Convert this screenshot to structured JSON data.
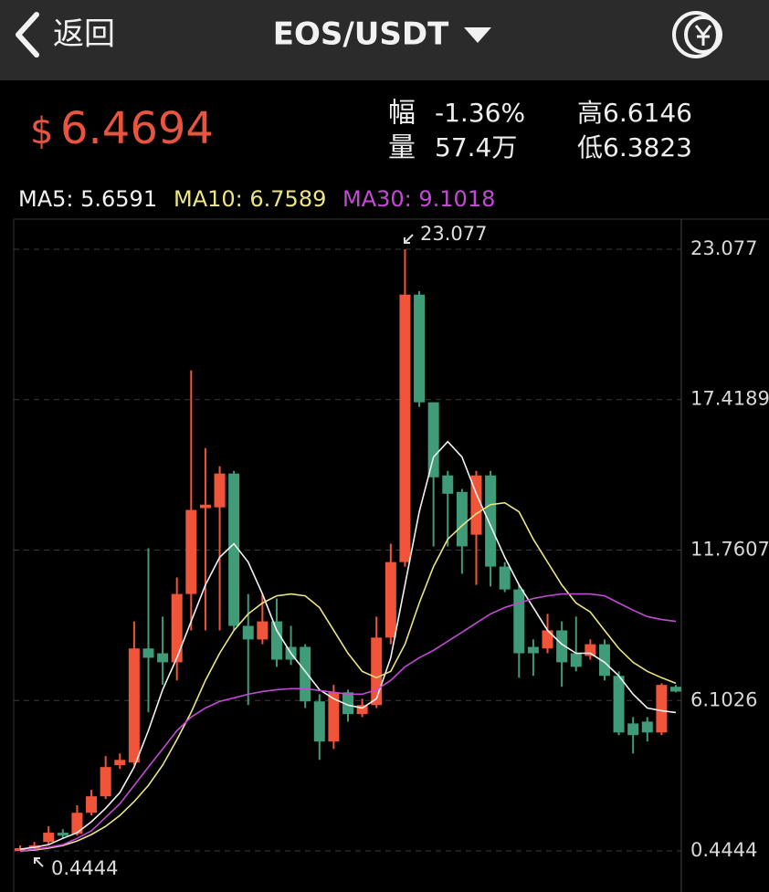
{
  "header": {
    "back": "返回",
    "pair": "EOS/USDT"
  },
  "ticker": {
    "currency": "$",
    "price": "6.4694",
    "change_label": "幅",
    "change": "-1.36%",
    "volume_label": "量",
    "volume": "57.4万",
    "high": "高6.6146",
    "low": "低6.3823"
  },
  "chart_data": {
    "type": "candlestick",
    "ylim": [
      -1.1,
      24.21
    ],
    "yticks": [
      0.4444,
      6.1026,
      11.7607,
      17.4189,
      23.077
    ],
    "grid": true,
    "up_color": "#f0553a",
    "down_color": "#3f9b78",
    "max_marker": 23.077,
    "min_marker": 0.4444,
    "open": [
      0.44,
      0.55,
      0.78,
      1.13,
      1.09,
      1.88,
      2.5,
      3.67,
      3.77,
      8.06,
      7.88,
      7.54,
      10.11,
      13.34,
      13.37,
      14.64,
      8.91,
      8.4,
      9.08,
      8.12,
      8.12,
      6.07,
      4.56,
      6.41,
      5.59,
      5.93,
      8.47,
      11.31,
      21.37,
      17.32,
      14.57,
      13.95,
      12.34,
      14.57,
      11.14,
      10.28,
      8.12,
      8.06,
      8.74,
      7.88,
      7.78,
      8.22,
      7.03,
      5.24,
      5.31,
      4.9,
      6.62
    ],
    "high": [
      0.65,
      0.78,
      1.37,
      1.26,
      2.16,
      2.74,
      4.01,
      4.11,
      9.08,
      11.83,
      9.26,
      10.73,
      18.52,
      15.6,
      14.91,
      14.74,
      10.11,
      10.11,
      9.94,
      8.91,
      8.22,
      6.34,
      6.69,
      6.51,
      6.17,
      9.26,
      12.0,
      23.077,
      21.5,
      17.32,
      14.74,
      14.06,
      14.74,
      14.74,
      11.31,
      10.45,
      8.4,
      9.36,
      9.08,
      9.26,
      8.4,
      8.4,
      7.2,
      5.48,
      5.48,
      6.75,
      6.69
    ],
    "low": [
      0.4444,
      0.51,
      0.71,
      0.92,
      1.02,
      1.78,
      2.4,
      3.53,
      3.67,
      5.66,
      6.69,
      6.86,
      8.74,
      8.74,
      8.74,
      8.74,
      5.93,
      8.22,
      7.37,
      7.44,
      5.82,
      3.87,
      4.28,
      5.31,
      5.48,
      5.82,
      8.22,
      11.14,
      17.15,
      11.9,
      11.9,
      10.87,
      10.45,
      10.39,
      10.18,
      6.96,
      7.03,
      7.88,
      6.62,
      7.2,
      7.64,
      6.86,
      4.8,
      4.11,
      4.56,
      4.8,
      6.41
    ],
    "close": [
      0.55,
      0.65,
      1.13,
      1.02,
      1.88,
      2.5,
      3.6,
      3.87,
      8.06,
      7.71,
      7.54,
      10.11,
      13.27,
      13.47,
      14.64,
      8.91,
      8.4,
      9.08,
      7.64,
      7.64,
      6.07,
      4.56,
      6.41,
      5.59,
      5.93,
      8.47,
      11.31,
      21.37,
      17.32,
      14.5,
      13.88,
      11.9,
      14.57,
      11.14,
      10.28,
      7.88,
      7.88,
      8.74,
      7.54,
      7.37,
      8.22,
      7.03,
      4.9,
      4.8,
      4.9,
      6.69,
      6.44
    ],
    "series": [
      {
        "name": "MA5: 5.6591",
        "color": "#f2f2f2",
        "values": [
          0.51,
          0.58,
          0.68,
          0.92,
          1.13,
          1.54,
          2.05,
          2.64,
          3.6,
          4.97,
          6.51,
          7.71,
          9.08,
          10.45,
          11.49,
          12.0,
          11.31,
          10.11,
          8.74,
          7.88,
          7.2,
          6.51,
          6.17,
          5.93,
          5.82,
          6.17,
          7.71,
          10.45,
          13.2,
          15.26,
          15.84,
          15.26,
          13.88,
          12.68,
          11.49,
          10.45,
          9.6,
          8.74,
          8.22,
          7.88,
          7.88,
          7.54,
          7.03,
          6.34,
          5.82,
          5.72,
          5.65
        ]
      },
      {
        "name": "MA10: 6.7589",
        "color": "#ece584",
        "values": [
          0.44,
          0.48,
          0.55,
          0.65,
          0.82,
          1.06,
          1.37,
          1.78,
          2.3,
          2.91,
          3.67,
          4.63,
          5.66,
          6.86,
          7.88,
          8.74,
          9.36,
          9.77,
          10.04,
          10.11,
          10.04,
          9.6,
          8.74,
          7.88,
          7.2,
          6.96,
          7.2,
          8.22,
          9.77,
          11.14,
          12.17,
          12.68,
          13.13,
          13.47,
          13.54,
          13.2,
          12.17,
          11.31,
          10.45,
          9.77,
          9.43,
          8.74,
          8.06,
          7.54,
          7.2,
          6.96,
          6.75
        ]
      },
      {
        "name": "MA30: 9.1018",
        "color": "#c44ad6",
        "values": [
          0.44,
          0.51,
          0.58,
          0.68,
          0.92,
          1.2,
          1.71,
          2.22,
          2.91,
          3.6,
          4.28,
          4.97,
          5.48,
          5.82,
          6.07,
          6.2,
          6.34,
          6.44,
          6.51,
          6.55,
          6.55,
          6.48,
          6.41,
          6.34,
          6.34,
          6.51,
          6.86,
          7.37,
          7.71,
          7.99,
          8.33,
          8.67,
          9.02,
          9.36,
          9.6,
          9.77,
          9.94,
          10.04,
          10.11,
          10.11,
          10.11,
          10.04,
          9.77,
          9.5,
          9.26,
          9.15,
          9.08
        ]
      }
    ]
  }
}
